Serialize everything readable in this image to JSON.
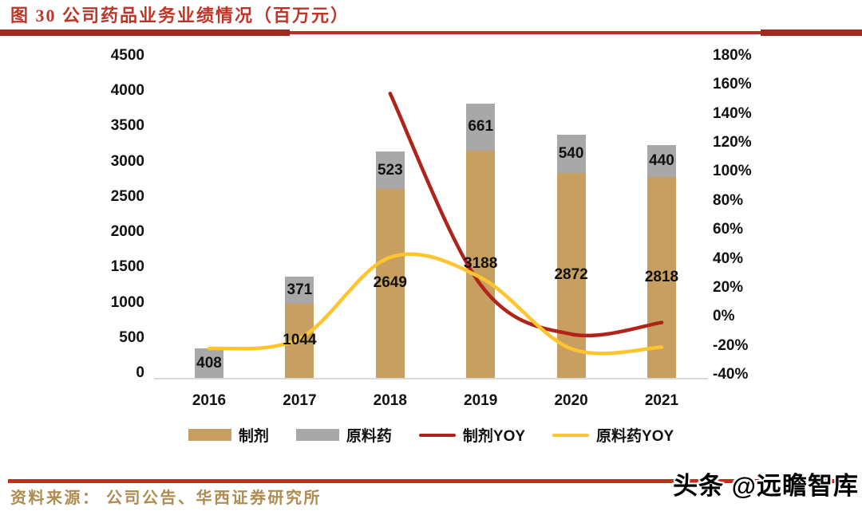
{
  "figure": {
    "title": "图 30 公司药品业务业绩情况（百万元）",
    "source_label": "资料来源： 公司公告、华西证券研究所",
    "watermark": "头条 @远瞻智库"
  },
  "colors": {
    "title_red": "#BE3528",
    "rule_red_dark": "#9E2B21",
    "rule_red": "#B93126",
    "bottom_rule_red": "#C22D1E",
    "bar_tan": "#C7A061",
    "bar_gray": "#A8A8A8",
    "line_red": "#AF2318",
    "line_yellow": "#FFC42E",
    "source_gold": "#AF8B51",
    "axis_line_gray": "#DADADA",
    "label_black": "#111111"
  },
  "chart_data": {
    "type": "bar+line",
    "title": "图 30 公司药品业务业绩情况（百万元）",
    "categories": [
      "2016",
      "2017",
      "2018",
      "2019",
      "2020",
      "2021"
    ],
    "grid": false,
    "legend_position": "bottom",
    "left_axis": {
      "min": 0,
      "max": 4500,
      "step": 500,
      "ticks": [
        "4500",
        "4000",
        "3500",
        "3000",
        "2500",
        "2000",
        "1500",
        "1000",
        "500",
        "0"
      ]
    },
    "right_axis": {
      "min_pct": -40,
      "max_pct": 180,
      "step_pct": 20,
      "ticks": [
        "180%",
        "160%",
        "140%",
        "120%",
        "100%",
        "80%",
        "60%",
        "40%",
        "20%",
        "0%",
        "-20%",
        "-40%"
      ]
    },
    "bar_series": [
      {
        "name": "制剂",
        "color_key": "bar_tan",
        "values": [
          408,
          1044,
          2649,
          3188,
          2872,
          2818
        ]
      },
      {
        "name": "原料药",
        "color_key": "bar_gray",
        "values": [
          null,
          371,
          523,
          661,
          540,
          440
        ]
      }
    ],
    "bars_rendered": [
      {
        "year": "2016",
        "segments": [
          {
            "series": "制剂",
            "color_key": "bar_gray",
            "value": 408,
            "label": "408"
          }
        ]
      },
      {
        "year": "2017",
        "segments": [
          {
            "series": "制剂",
            "color_key": "bar_tan",
            "value": 1044,
            "label": "1044"
          },
          {
            "series": "原料药",
            "color_key": "bar_gray",
            "value": 371,
            "label": "371"
          }
        ]
      },
      {
        "year": "2018",
        "segments": [
          {
            "series": "制剂",
            "color_key": "bar_tan",
            "value": 2649,
            "label": "2649"
          },
          {
            "series": "原料药",
            "color_key": "bar_gray",
            "value": 523,
            "label": "523"
          }
        ]
      },
      {
        "year": "2019",
        "segments": [
          {
            "series": "制剂",
            "color_key": "bar_tan",
            "value": 3188,
            "label": "3188"
          },
          {
            "series": "原料药",
            "color_key": "bar_gray",
            "value": 661,
            "label": "661"
          }
        ]
      },
      {
        "year": "2020",
        "segments": [
          {
            "series": "制剂",
            "color_key": "bar_tan",
            "value": 2872,
            "label": "2872"
          },
          {
            "series": "原料药",
            "color_key": "bar_gray",
            "value": 540,
            "label": "540"
          }
        ]
      },
      {
        "year": "2021",
        "segments": [
          {
            "series": "制剂",
            "color_key": "bar_tan",
            "value": 2818,
            "label": "2818"
          },
          {
            "series": "原料药",
            "color_key": "bar_gray",
            "value": 440,
            "label": "440"
          }
        ]
      }
    ],
    "line_series": [
      {
        "name": "制剂YOY",
        "color_key": "line_red",
        "values_pct": [
          null,
          null,
          154,
          22,
          -12,
          -4
        ]
      },
      {
        "name": "原料药YOY",
        "color_key": "line_yellow",
        "values_pct": [
          -22,
          -15,
          41,
          27,
          -22,
          -21
        ]
      }
    ],
    "legend": [
      {
        "label": "制剂",
        "swatch": "bar",
        "color_key": "bar_tan"
      },
      {
        "label": "原料药",
        "swatch": "bar",
        "color_key": "bar_gray"
      },
      {
        "label": "制剂YOY",
        "swatch": "line",
        "color_key": "line_red"
      },
      {
        "label": "原料药YOY",
        "swatch": "line",
        "color_key": "line_yellow"
      }
    ]
  }
}
